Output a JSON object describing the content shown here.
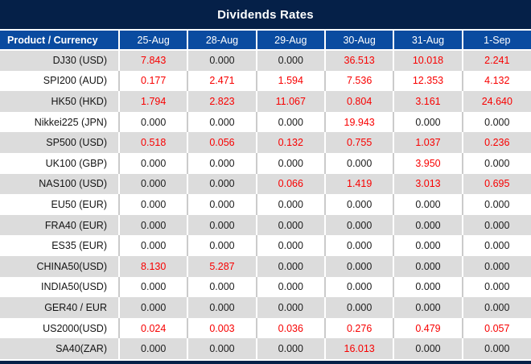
{
  "title": "Dividends Rates",
  "colors": {
    "navy": "#052048",
    "header_blue": "#0a4ba0",
    "row_gray": "#dcdcdc",
    "row_white": "#ffffff",
    "value_red": "#f80000",
    "value_black": "#1c1c1c"
  },
  "table": {
    "columns": [
      "Product / Currency",
      "25-Aug",
      "28-Aug",
      "29-Aug",
      "30-Aug",
      "31-Aug",
      "1-Sep"
    ],
    "rows": [
      {
        "product": "DJ30 (USD)",
        "values": [
          "7.843",
          "0.000",
          "0.000",
          "36.513",
          "10.018",
          "2.241"
        ],
        "red": [
          true,
          false,
          false,
          true,
          true,
          true
        ]
      },
      {
        "product": "SPI200 (AUD)",
        "values": [
          "0.177",
          "2.471",
          "1.594",
          "7.536",
          "12.353",
          "4.132"
        ],
        "red": [
          true,
          true,
          true,
          true,
          true,
          true
        ]
      },
      {
        "product": "HK50 (HKD)",
        "values": [
          "1.794",
          "2.823",
          "11.067",
          "0.804",
          "3.161",
          "24.640"
        ],
        "red": [
          true,
          true,
          true,
          true,
          true,
          true
        ]
      },
      {
        "product": "Nikkei225 (JPN)",
        "values": [
          "0.000",
          "0.000",
          "0.000",
          "19.943",
          "0.000",
          "0.000"
        ],
        "red": [
          false,
          false,
          false,
          true,
          false,
          false
        ]
      },
      {
        "product": "SP500 (USD)",
        "values": [
          "0.518",
          "0.056",
          "0.132",
          "0.755",
          "1.037",
          "0.236"
        ],
        "red": [
          true,
          true,
          true,
          true,
          true,
          true
        ]
      },
      {
        "product": "UK100 (GBP)",
        "values": [
          "0.000",
          "0.000",
          "0.000",
          "0.000",
          "3.950",
          "0.000"
        ],
        "red": [
          false,
          false,
          false,
          false,
          true,
          false
        ]
      },
      {
        "product": "NAS100 (USD)",
        "values": [
          "0.000",
          "0.000",
          "0.066",
          "1.419",
          "3.013",
          "0.695"
        ],
        "red": [
          false,
          false,
          true,
          true,
          true,
          true
        ]
      },
      {
        "product": "EU50 (EUR)",
        "values": [
          "0.000",
          "0.000",
          "0.000",
          "0.000",
          "0.000",
          "0.000"
        ],
        "red": [
          false,
          false,
          false,
          false,
          false,
          false
        ]
      },
      {
        "product": "FRA40 (EUR)",
        "values": [
          "0.000",
          "0.000",
          "0.000",
          "0.000",
          "0.000",
          "0.000"
        ],
        "red": [
          false,
          false,
          false,
          false,
          false,
          false
        ]
      },
      {
        "product": "ES35 (EUR)",
        "values": [
          "0.000",
          "0.000",
          "0.000",
          "0.000",
          "0.000",
          "0.000"
        ],
        "red": [
          false,
          false,
          false,
          false,
          false,
          false
        ]
      },
      {
        "product": "CHINA50(USD)",
        "values": [
          "8.130",
          "5.287",
          "0.000",
          "0.000",
          "0.000",
          "0.000"
        ],
        "red": [
          true,
          true,
          false,
          false,
          false,
          false
        ]
      },
      {
        "product": "INDIA50(USD)",
        "values": [
          "0.000",
          "0.000",
          "0.000",
          "0.000",
          "0.000",
          "0.000"
        ],
        "red": [
          false,
          false,
          false,
          false,
          false,
          false
        ]
      },
      {
        "product": "GER40 / EUR",
        "values": [
          "0.000",
          "0.000",
          "0.000",
          "0.000",
          "0.000",
          "0.000"
        ],
        "red": [
          false,
          false,
          false,
          false,
          false,
          false
        ]
      },
      {
        "product": "US2000(USD)",
        "values": [
          "0.024",
          "0.003",
          "0.036",
          "0.276",
          "0.479",
          "0.057"
        ],
        "red": [
          true,
          true,
          true,
          true,
          true,
          true
        ]
      },
      {
        "product": "SA40(ZAR)",
        "values": [
          "0.000",
          "0.000",
          "0.000",
          "16.013",
          "0.000",
          "0.000"
        ],
        "red": [
          false,
          false,
          false,
          true,
          false,
          false
        ]
      }
    ]
  }
}
